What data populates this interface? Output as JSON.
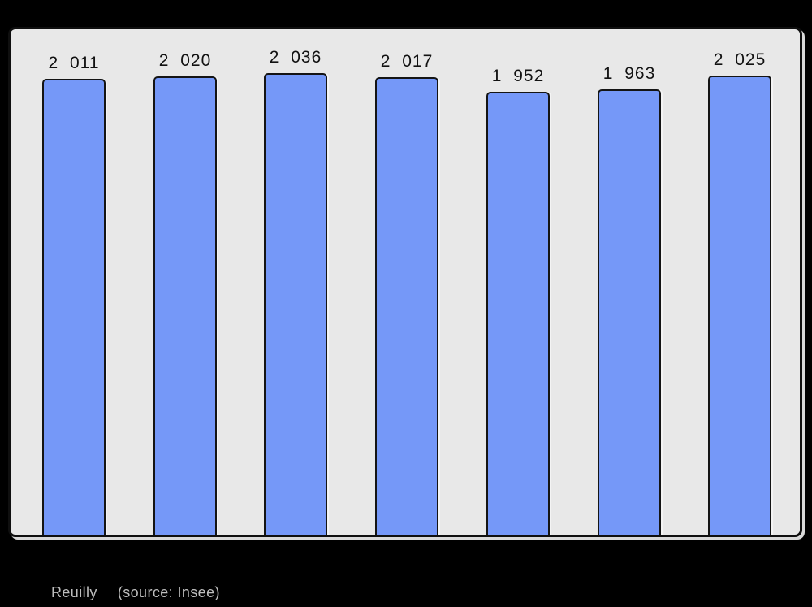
{
  "page": {
    "background": "#000000"
  },
  "chart_data": {
    "type": "bar",
    "values": [
      2011,
      2020,
      2036,
      2017,
      1952,
      1963,
      2025
    ],
    "value_labels": [
      "2 011",
      "2 020",
      "2 036",
      "2 017",
      "1 952",
      "1 963",
      "2 025"
    ],
    "title": "",
    "xlabel": "",
    "ylabel": "",
    "ylim": [
      0,
      2230
    ],
    "grid": false,
    "legend": false,
    "axis_tick_labels_visible": false,
    "bar_color": "#7598f8",
    "bar_border_color": "#141414",
    "plot_background": "#e8e8e8",
    "plot_border_color": "#0f0f0f",
    "label_color": "#111111"
  },
  "caption": {
    "place": "Reuilly",
    "source": "(source: Insee)",
    "color": "#bdbdbd"
  }
}
